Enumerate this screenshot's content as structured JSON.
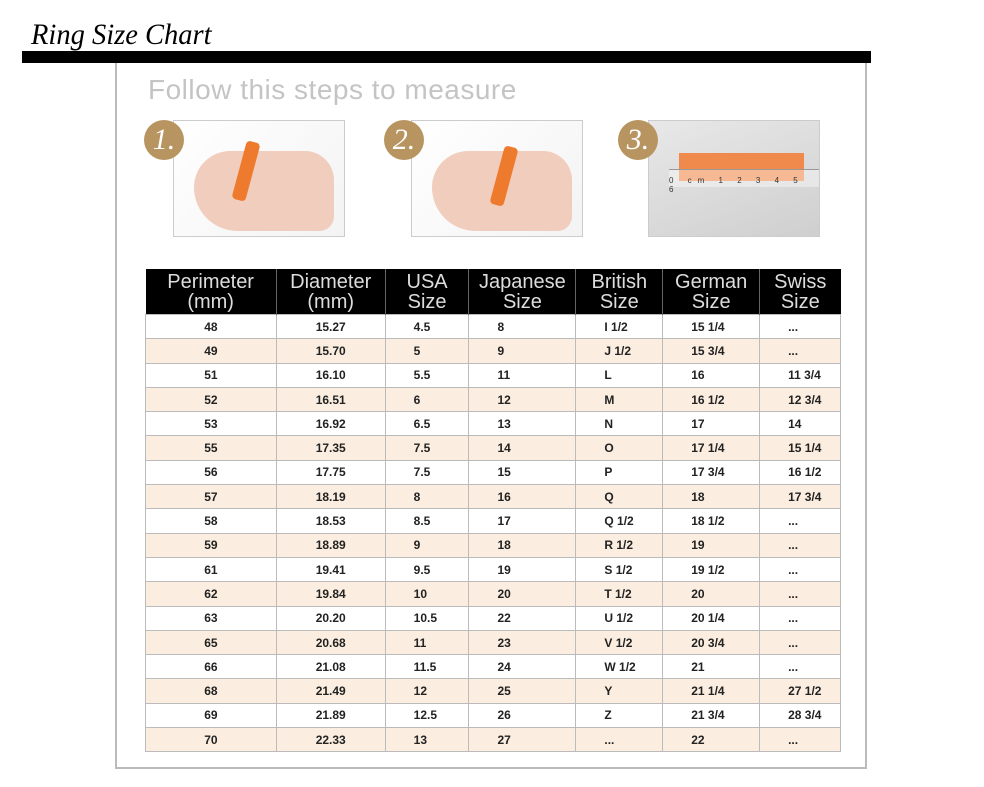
{
  "title": "Ring Size Chart",
  "subtitle": "Follow this steps to measure",
  "steps": [
    {
      "number": "1."
    },
    {
      "number": "2."
    },
    {
      "number": "3."
    }
  ],
  "ruler_label": "0 cm 1 2 3 4 5 6",
  "accent_color": "#b89560",
  "table": {
    "headers": [
      [
        "Perimeter",
        "(mm)"
      ],
      [
        "Diameter",
        "(mm)"
      ],
      [
        "USA",
        "Size"
      ],
      [
        "Japanese",
        "Size"
      ],
      [
        "British",
        "Size"
      ],
      [
        "German",
        "Size"
      ],
      [
        "Swiss",
        "Size"
      ]
    ],
    "rows": [
      [
        "48",
        "15.27",
        "4.5",
        "8",
        "I 1/2",
        "15 1/4",
        "..."
      ],
      [
        "49",
        "15.70",
        "5",
        "9",
        "J 1/2",
        "15 3/4",
        "..."
      ],
      [
        "51",
        "16.10",
        "5.5",
        "11",
        "L",
        "16",
        "11 3/4"
      ],
      [
        "52",
        "16.51",
        "6",
        "12",
        "M",
        "16 1/2",
        "12 3/4"
      ],
      [
        "53",
        "16.92",
        "6.5",
        "13",
        "N",
        "17",
        "14"
      ],
      [
        "55",
        "17.35",
        "7.5",
        "14",
        "O",
        "17 1/4",
        "15 1/4"
      ],
      [
        "56",
        "17.75",
        "7.5",
        "15",
        "P",
        "17 3/4",
        "16 1/2"
      ],
      [
        "57",
        "18.19",
        "8",
        "16",
        "Q",
        "18",
        "17 3/4"
      ],
      [
        "58",
        "18.53",
        "8.5",
        "17",
        "Q 1/2",
        "18 1/2",
        "..."
      ],
      [
        "59",
        "18.89",
        "9",
        "18",
        "R 1/2",
        "19",
        "..."
      ],
      [
        "61",
        "19.41",
        "9.5",
        "19",
        "S 1/2",
        "19 1/2",
        "..."
      ],
      [
        "62",
        "19.84",
        "10",
        "20",
        "T 1/2",
        "20",
        "..."
      ],
      [
        "63",
        "20.20",
        "10.5",
        "22",
        "U 1/2",
        "20 1/4",
        "..."
      ],
      [
        "65",
        "20.68",
        "11",
        "23",
        "V 1/2",
        "20 3/4",
        "..."
      ],
      [
        "66",
        "21.08",
        "11.5",
        "24",
        "W 1/2",
        "21",
        "..."
      ],
      [
        "68",
        "21.49",
        "12",
        "25",
        "Y",
        "21 1/4",
        "27 1/2"
      ],
      [
        "69",
        "21.89",
        "12.5",
        "26",
        "Z",
        "21 3/4",
        "28 3/4"
      ],
      [
        "70",
        "22.33",
        "13",
        "27",
        "...",
        "22",
        "..."
      ]
    ]
  }
}
